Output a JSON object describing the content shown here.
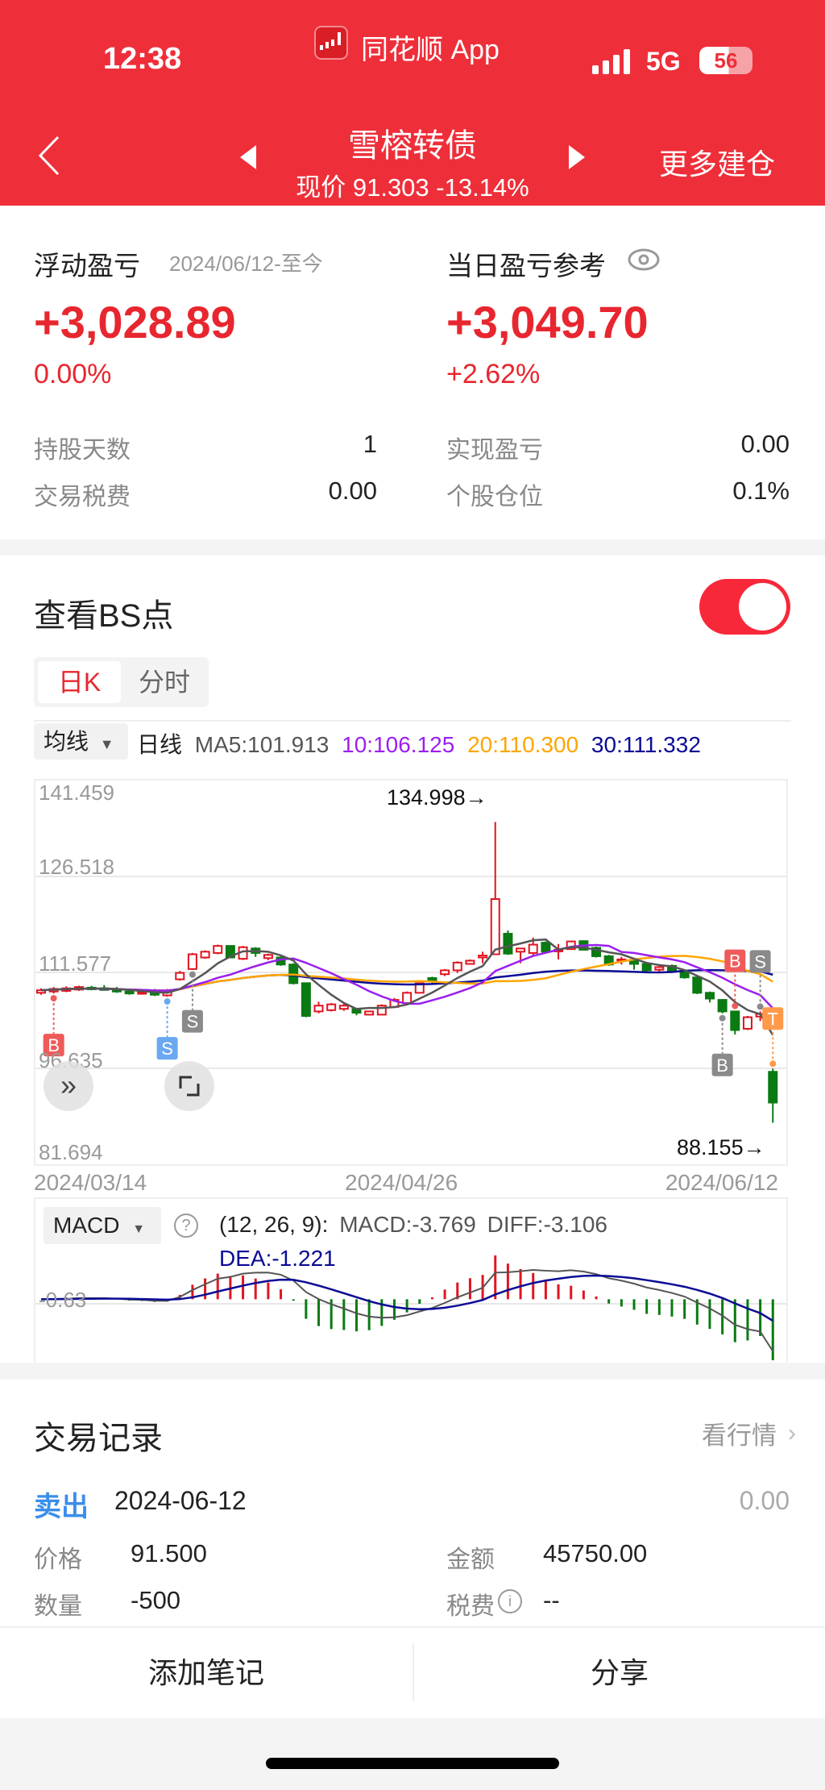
{
  "status_bar": {
    "time": "12:38",
    "app_name": "同花顺 App",
    "network": "5G",
    "battery": "56"
  },
  "nav": {
    "title": "雪榕转债",
    "subtitle": "现价 91.303 -13.14%",
    "right_action": "更多建仓"
  },
  "summary": {
    "floating_pl_label": "浮动盈亏",
    "floating_pl_range": "2024/06/12-至今",
    "floating_pl_value": "+3,028.89",
    "floating_pl_pct": "0.00%",
    "daily_pl_label": "当日盈亏参考",
    "daily_pl_value": "+3,049.70",
    "daily_pl_pct": "+2.62%",
    "rows": [
      {
        "label": "持股天数",
        "value": "1"
      },
      {
        "label": "实现盈亏",
        "value": "0.00"
      },
      {
        "label": "交易税费",
        "value": "0.00"
      },
      {
        "label": "个股仓位",
        "value": "0.1%"
      }
    ]
  },
  "bs": {
    "title": "查看BS点",
    "toggle_on": true,
    "tabs": [
      "日K",
      "分时"
    ],
    "active_tab": 0
  },
  "ma_legend": {
    "selector": "均线",
    "period": "日线",
    "ma5": "MA5:101.913",
    "ma10": "10:106.125",
    "ma20": "20:110.300",
    "ma30": "30:111.332"
  },
  "colors": {
    "up": "#E0151F",
    "down": "#0A7A12",
    "ma5": "#555555",
    "ma10": "#9B1FF0",
    "ma20": "#FFA500",
    "ma30": "#0B0B95",
    "header": "#EE2F3A",
    "sell": "#3B8EEA"
  },
  "chart_data": {
    "type": "candlestick",
    "y_ticks": [
      "141.459",
      "126.518",
      "111.577",
      "96.635",
      "81.694"
    ],
    "ylim": [
      81.694,
      141.459
    ],
    "x_ticks": [
      "2024/03/14",
      "2024/04/26",
      "2024/06/12"
    ],
    "max_annotation": "134.998→",
    "min_annotation": "88.155→",
    "candles_ochl_note": "[open, close, high, low]",
    "candles": [
      [
        108.4,
        108.8,
        109.1,
        108.1
      ],
      [
        108.6,
        109.0,
        109.3,
        108.3
      ],
      [
        108.7,
        109.1,
        109.4,
        108.5
      ],
      [
        108.9,
        109.3,
        109.5,
        108.7
      ],
      [
        109.2,
        109.0,
        109.5,
        108.8
      ],
      [
        109.1,
        109.0,
        109.6,
        108.8
      ],
      [
        109.0,
        108.6,
        109.3,
        108.4
      ],
      [
        108.6,
        108.3,
        108.9,
        108.1
      ],
      [
        108.4,
        108.5,
        108.8,
        108.1
      ],
      [
        108.5,
        108.1,
        109.0,
        107.9
      ],
      [
        108.0,
        108.5,
        109.0,
        107.8
      ],
      [
        110.5,
        111.5,
        111.8,
        110.3
      ],
      [
        112.1,
        114.4,
        114.6,
        112.0
      ],
      [
        113.9,
        114.8,
        115.0,
        113.7
      ],
      [
        114.6,
        115.7,
        115.9,
        114.4
      ],
      [
        115.7,
        113.9,
        115.8,
        113.8
      ],
      [
        113.7,
        115.5,
        115.7,
        113.5
      ],
      [
        115.3,
        114.6,
        115.5,
        114.0
      ],
      [
        113.8,
        114.3,
        114.5,
        113.5
      ],
      [
        113.9,
        112.8,
        114.0,
        112.6
      ],
      [
        112.8,
        109.9,
        113.0,
        109.7
      ],
      [
        109.9,
        104.8,
        110.0,
        104.6
      ],
      [
        105.5,
        106.4,
        107.0,
        105.2
      ],
      [
        105.7,
        106.6,
        106.8,
        105.5
      ],
      [
        105.9,
        106.4,
        106.8,
        105.6
      ],
      [
        105.9,
        105.3,
        106.0,
        104.9
      ],
      [
        105.0,
        105.5,
        105.6,
        104.9
      ],
      [
        105.0,
        106.4,
        106.6,
        104.9
      ],
      [
        106.2,
        107.3,
        107.6,
        106.0
      ],
      [
        106.8,
        108.4,
        108.6,
        106.6
      ],
      [
        108.4,
        109.9,
        110.0,
        108.3
      ],
      [
        110.7,
        110.2,
        110.9,
        109.8
      ],
      [
        111.3,
        111.9,
        112.1,
        111.0
      ],
      [
        111.9,
        113.1,
        113.3,
        111.5
      ],
      [
        112.9,
        113.4,
        113.6,
        112.8
      ],
      [
        113.9,
        114.2,
        114.8,
        113.0
      ],
      [
        114.4,
        123.0,
        134.998,
        114.3
      ],
      [
        117.6,
        114.5,
        118.1,
        114.3
      ],
      [
        114.8,
        115.3,
        115.4,
        113.0
      ],
      [
        114.6,
        115.9,
        117.0,
        114.0
      ],
      [
        116.2,
        114.8,
        116.4,
        114.6
      ],
      [
        115.0,
        115.1,
        116.0,
        113.6
      ],
      [
        115.2,
        116.4,
        116.5,
        115.1
      ],
      [
        116.45,
        115.1,
        116.5,
        115.0
      ],
      [
        115.4,
        114.1,
        115.6,
        113.9
      ],
      [
        114.1,
        112.8,
        114.3,
        112.6
      ],
      [
        113.4,
        113.6,
        114.0,
        112.8
      ],
      [
        113.4,
        112.9,
        113.5,
        112.0
      ],
      [
        112.9,
        111.9,
        113.2,
        111.6
      ],
      [
        112.0,
        112.4,
        112.8,
        111.6
      ],
      [
        112.6,
        111.7,
        112.8,
        111.5
      ],
      [
        111.7,
        110.8,
        111.9,
        110.6
      ],
      [
        110.8,
        108.4,
        111.0,
        108.2
      ],
      [
        108.4,
        107.5,
        108.6,
        106.9
      ],
      [
        107.3,
        105.5,
        107.4,
        105.2
      ],
      [
        105.5,
        102.6,
        105.6,
        101.9
      ],
      [
        102.8,
        104.6,
        104.8,
        102.6
      ],
      [
        104.7,
        105.1,
        105.5,
        104.0
      ],
      [
        96.1,
        91.303,
        96.6,
        88.155
      ]
    ],
    "markers": [
      {
        "index": 1,
        "label": "B",
        "color": "#F05A5A",
        "side": "below"
      },
      {
        "index": 10,
        "label": "S",
        "color": "#6AA8F0",
        "side": "below"
      },
      {
        "index": 12,
        "label": "S",
        "color": "#8A8A8A",
        "side": "below"
      },
      {
        "index": 54,
        "label": "B",
        "color": "#8A8A8A",
        "side": "below"
      },
      {
        "index": 55,
        "label": "B",
        "color": "#F05A5A",
        "side": "above"
      },
      {
        "index": 57,
        "label": "S",
        "color": "#8A8A8A",
        "side": "above"
      },
      {
        "index": 58,
        "label": "T",
        "color": "#FF9A4A",
        "side": "above"
      }
    ]
  },
  "macd": {
    "selector": "MACD",
    "params": "(12, 26, 9):",
    "macd": "MACD:-3.769",
    "diff": "DIFF:-3.106",
    "dea": "DEA:-1.221",
    "tick": "-0.63"
  },
  "trades": {
    "title": "交易记录",
    "link": "看行情",
    "record": {
      "side": "卖出",
      "date": "2024-06-12",
      "pl": "0.00",
      "price_label": "价格",
      "price": "91.500",
      "amount_label": "金额",
      "amount": "45750.00",
      "qty_label": "数量",
      "qty": "-500",
      "fee_label": "税费",
      "fee": "--"
    }
  },
  "footer": {
    "add_note": "添加笔记",
    "share": "分享"
  }
}
